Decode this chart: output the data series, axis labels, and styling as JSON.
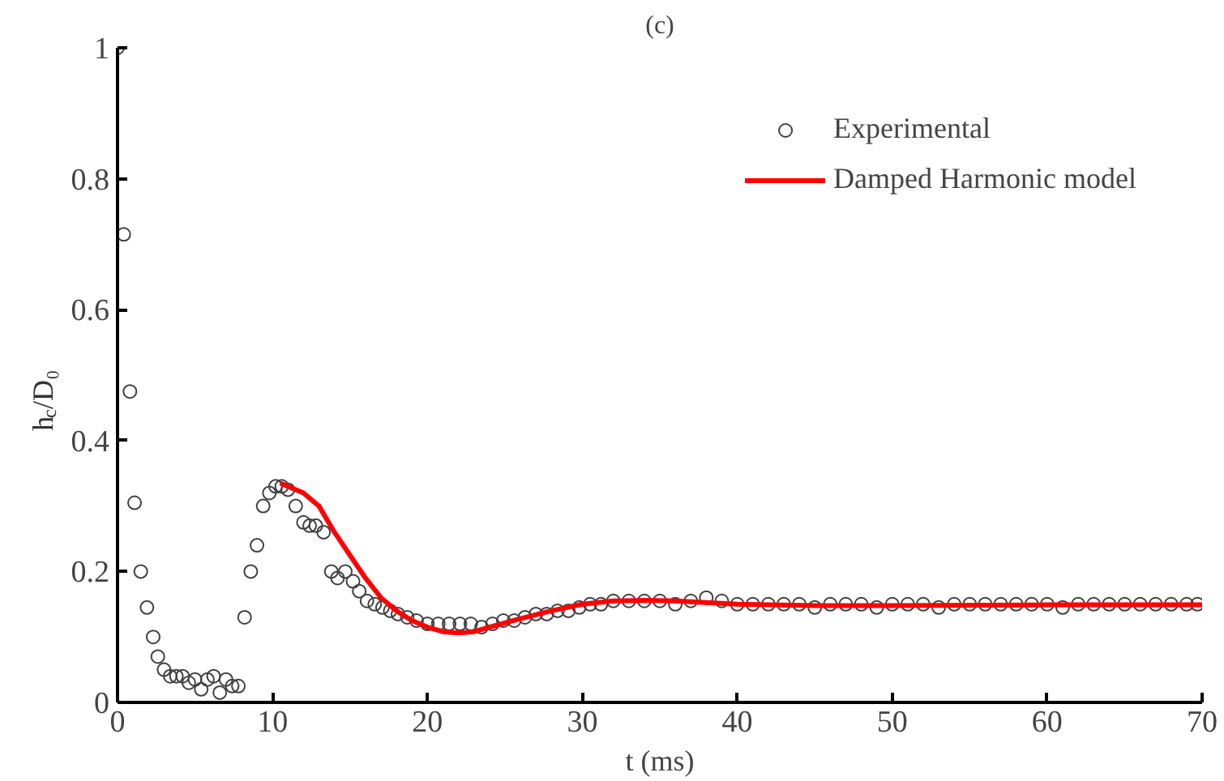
{
  "chart_data": {
    "type": "scatter",
    "title": "(c)",
    "xlabel": "t (ms)",
    "ylabel": "h$_{c}$/D₀",
    "xlim": [
      0,
      70
    ],
    "ylim": [
      0,
      1
    ],
    "xticks": [
      0,
      10,
      20,
      30,
      40,
      50,
      60,
      70
    ],
    "yticks": [
      0,
      0.2,
      0.4,
      0.6,
      0.8,
      1
    ],
    "grid": false,
    "legend": "top right",
    "series": [
      {
        "name": "Experimental",
        "type": "scatter",
        "marker": "circle",
        "color": "#404040",
        "x": [
          0,
          0.4,
          0.8,
          1.1,
          1.5,
          1.9,
          2.3,
          2.6,
          3.0,
          3.4,
          3.8,
          4.2,
          4.6,
          5.0,
          5.4,
          5.8,
          6.2,
          6.6,
          7.0,
          7.4,
          7.8,
          8.2,
          8.6,
          9.0,
          9.4,
          9.8,
          10.2,
          10.6,
          11.0,
          11.5,
          12.0,
          12.4,
          12.8,
          13.3,
          13.8,
          14.2,
          14.7,
          15.2,
          15.6,
          16.1,
          16.6,
          17.1,
          17.6,
          18.1,
          18.7,
          19.3,
          20.0,
          20.7,
          21.4,
          22.1,
          22.8,
          23.5,
          24.2,
          24.9,
          25.6,
          26.3,
          27.0,
          27.7,
          28.4,
          29.1,
          29.8,
          30.5,
          31.2,
          32.0,
          33.0,
          34.0,
          35.0,
          36.0,
          37.0,
          38.0,
          39.0,
          40.0,
          41.0,
          42.0,
          43.0,
          44.0,
          45.0,
          46.0,
          47.0,
          48.0,
          49.0,
          50.0,
          51.0,
          52.0,
          53.0,
          54.0,
          55.0,
          56.0,
          57.0,
          58.0,
          59.0,
          60.0,
          61.0,
          62.0,
          63.0,
          64.0,
          65.0,
          66.0,
          67.0,
          68.0,
          69.0,
          69.7
        ],
        "values": [
          1.0,
          0.715,
          0.475,
          0.305,
          0.2,
          0.145,
          0.1,
          0.07,
          0.05,
          0.04,
          0.04,
          0.04,
          0.03,
          0.035,
          0.02,
          0.035,
          0.04,
          0.015,
          0.035,
          0.025,
          0.025,
          0.13,
          0.2,
          0.24,
          0.3,
          0.32,
          0.33,
          0.33,
          0.325,
          0.3,
          0.275,
          0.27,
          0.27,
          0.26,
          0.2,
          0.19,
          0.2,
          0.185,
          0.17,
          0.155,
          0.15,
          0.145,
          0.14,
          0.135,
          0.13,
          0.125,
          0.12,
          0.12,
          0.12,
          0.12,
          0.12,
          0.115,
          0.12,
          0.125,
          0.125,
          0.13,
          0.135,
          0.135,
          0.14,
          0.14,
          0.145,
          0.15,
          0.15,
          0.155,
          0.155,
          0.155,
          0.155,
          0.15,
          0.155,
          0.16,
          0.155,
          0.15,
          0.15,
          0.15,
          0.15,
          0.15,
          0.145,
          0.15,
          0.15,
          0.15,
          0.145,
          0.15,
          0.15,
          0.15,
          0.145,
          0.15,
          0.15,
          0.15,
          0.15,
          0.15,
          0.15,
          0.15,
          0.145,
          0.15,
          0.15,
          0.15,
          0.15,
          0.15,
          0.15,
          0.15,
          0.15,
          0.15
        ]
      },
      {
        "name": "Damped Harmonic model",
        "type": "line",
        "line_style": "solid",
        "color": "#ff0000",
        "x": [
          10.5,
          12,
          13,
          14,
          15,
          16,
          17,
          18,
          19,
          20,
          21,
          22,
          23,
          24,
          26,
          28,
          30,
          32,
          34,
          36,
          40,
          45,
          50,
          60,
          70
        ],
        "values": [
          0.335,
          0.32,
          0.3,
          0.26,
          0.225,
          0.19,
          0.16,
          0.14,
          0.125,
          0.115,
          0.108,
          0.106,
          0.108,
          0.115,
          0.128,
          0.14,
          0.15,
          0.155,
          0.156,
          0.155,
          0.15,
          0.148,
          0.148,
          0.149,
          0.149
        ]
      }
    ]
  }
}
